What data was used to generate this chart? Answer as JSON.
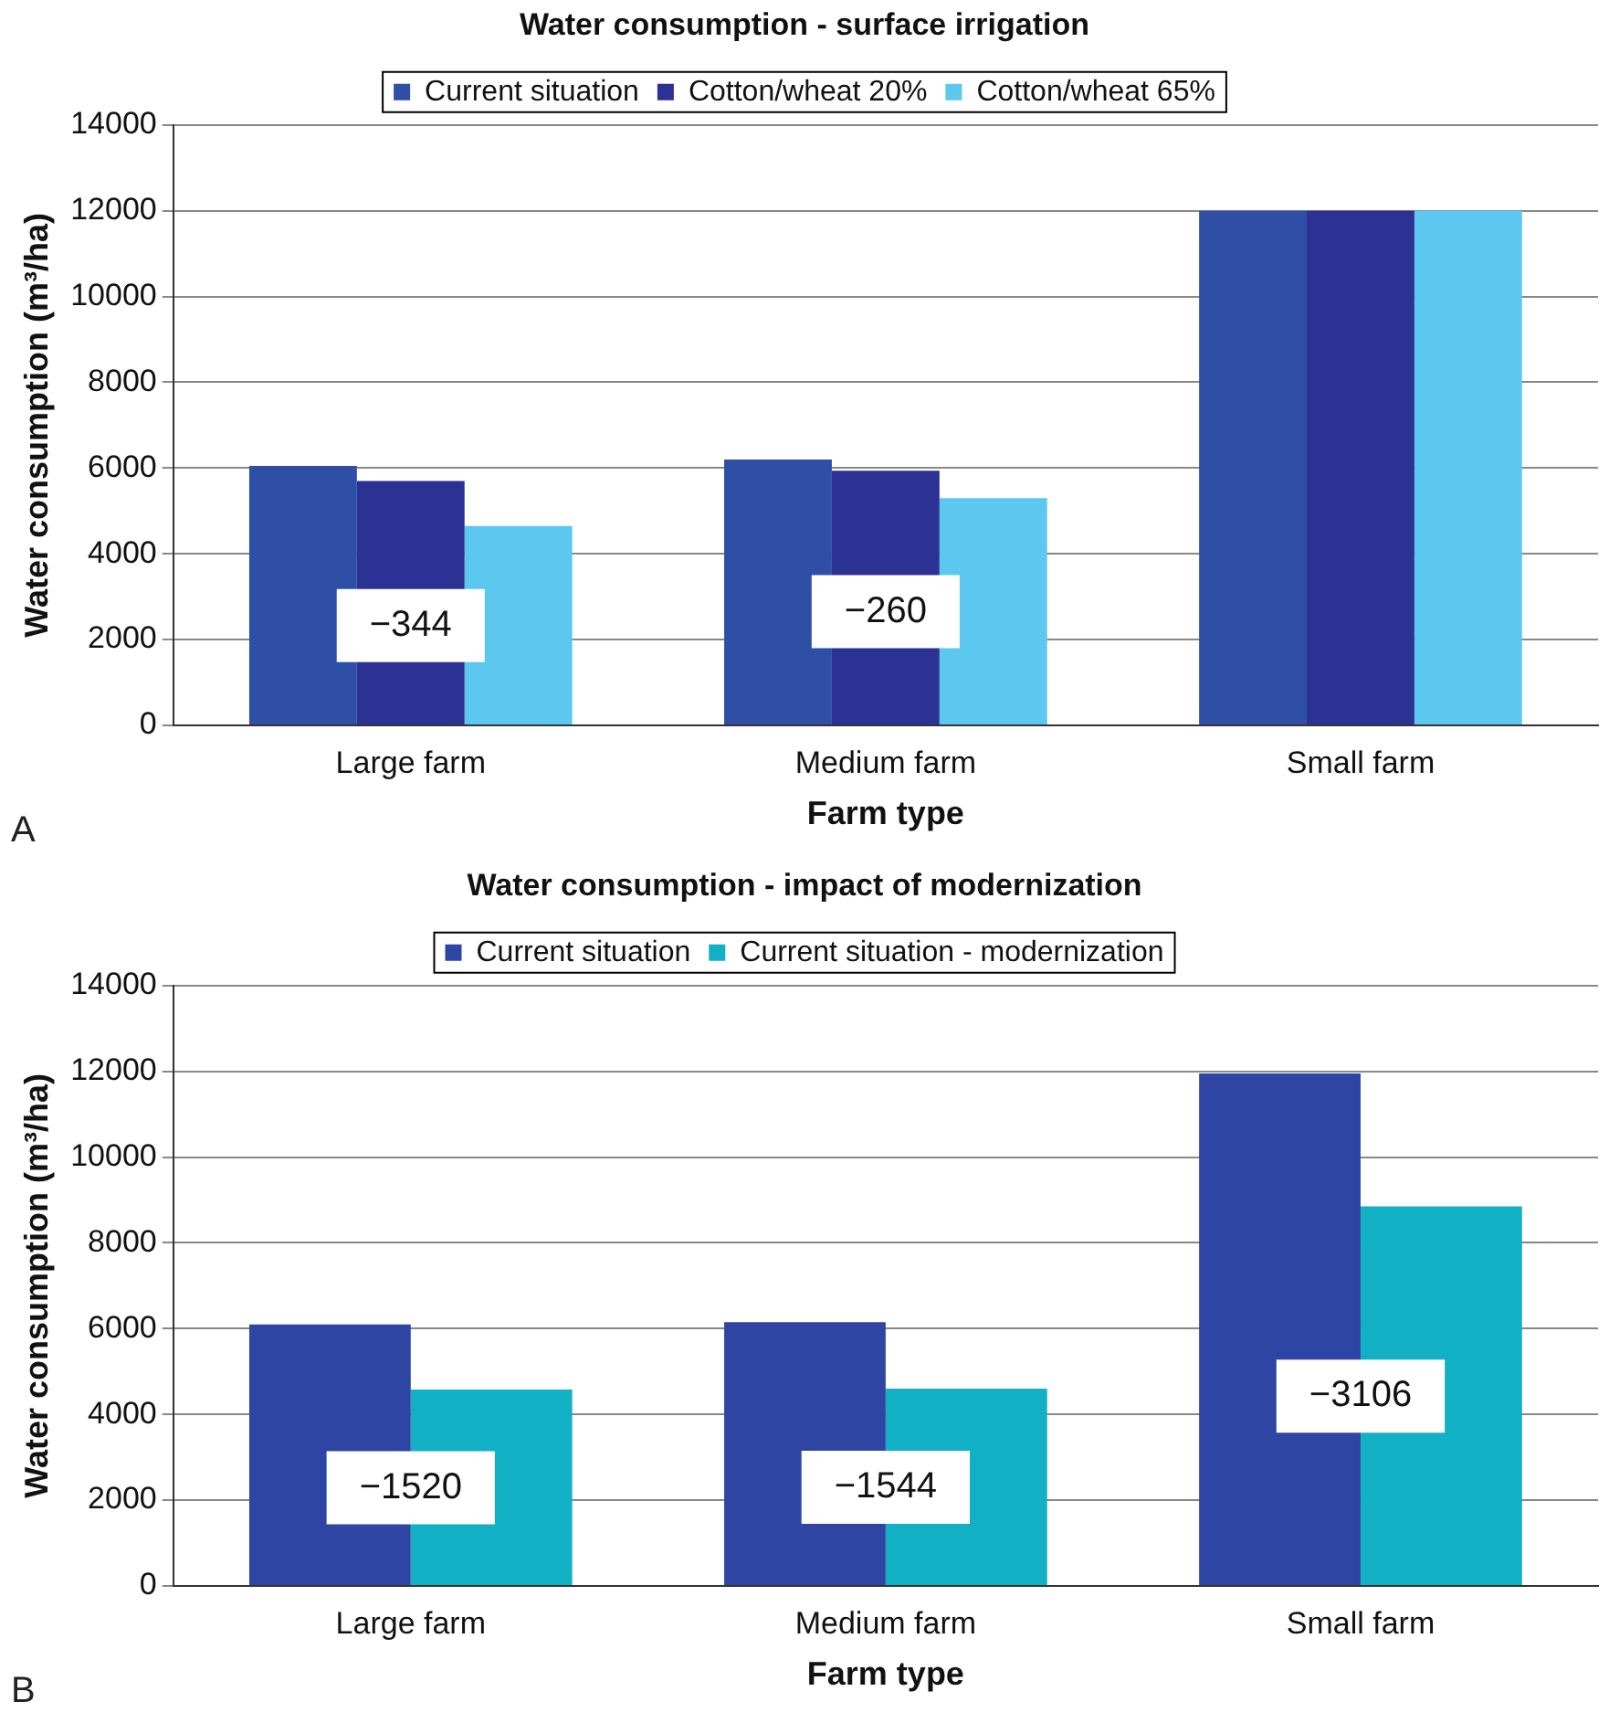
{
  "chart_data": [
    {
      "type": "bar",
      "title": "Water consumption - surface irrigation",
      "xlabel": "Farm type",
      "ylabel": "Water consumption (m³/ha)",
      "categories": [
        "Large farm",
        "Medium farm",
        "Small farm"
      ],
      "series": [
        {
          "name": "Current situation",
          "color": "#2f4fa6",
          "values": [
            6050,
            6200,
            12000
          ]
        },
        {
          "name": "Cotton/wheat 20%",
          "color": "#2b3294",
          "values": [
            5700,
            5940,
            12000
          ]
        },
        {
          "name": "Cotton/wheat 65%",
          "color": "#5cc8f0",
          "values": [
            4650,
            5300,
            12000
          ]
        }
      ],
      "ylim": [
        0,
        14000
      ],
      "yticks": [
        0,
        2000,
        4000,
        6000,
        8000,
        10000,
        12000,
        14000
      ],
      "grid": "y",
      "legend": "top",
      "annotations": [
        "−344",
        "−260",
        "A"
      ]
    },
    {
      "type": "bar",
      "title": "Water consumption - impact of modernization",
      "xlabel": "Farm type",
      "ylabel": "Water consumption (m³/ha)",
      "categories": [
        "Large farm",
        "Medium farm",
        "Small farm"
      ],
      "series": [
        {
          "name": "Current situation",
          "color": "#2f45a3",
          "values": [
            6100,
            6150,
            11950
          ]
        },
        {
          "name": "Current situation - modernization",
          "color": "#12b0c4",
          "values": [
            4580,
            4600,
            8850
          ]
        }
      ],
      "ylim": [
        0,
        14000
      ],
      "yticks": [
        0,
        2000,
        4000,
        6000,
        8000,
        10000,
        12000,
        14000
      ],
      "grid": "y",
      "legend": "top",
      "annotations": [
        "−1520",
        "−1544",
        "−3106",
        "B"
      ]
    }
  ]
}
